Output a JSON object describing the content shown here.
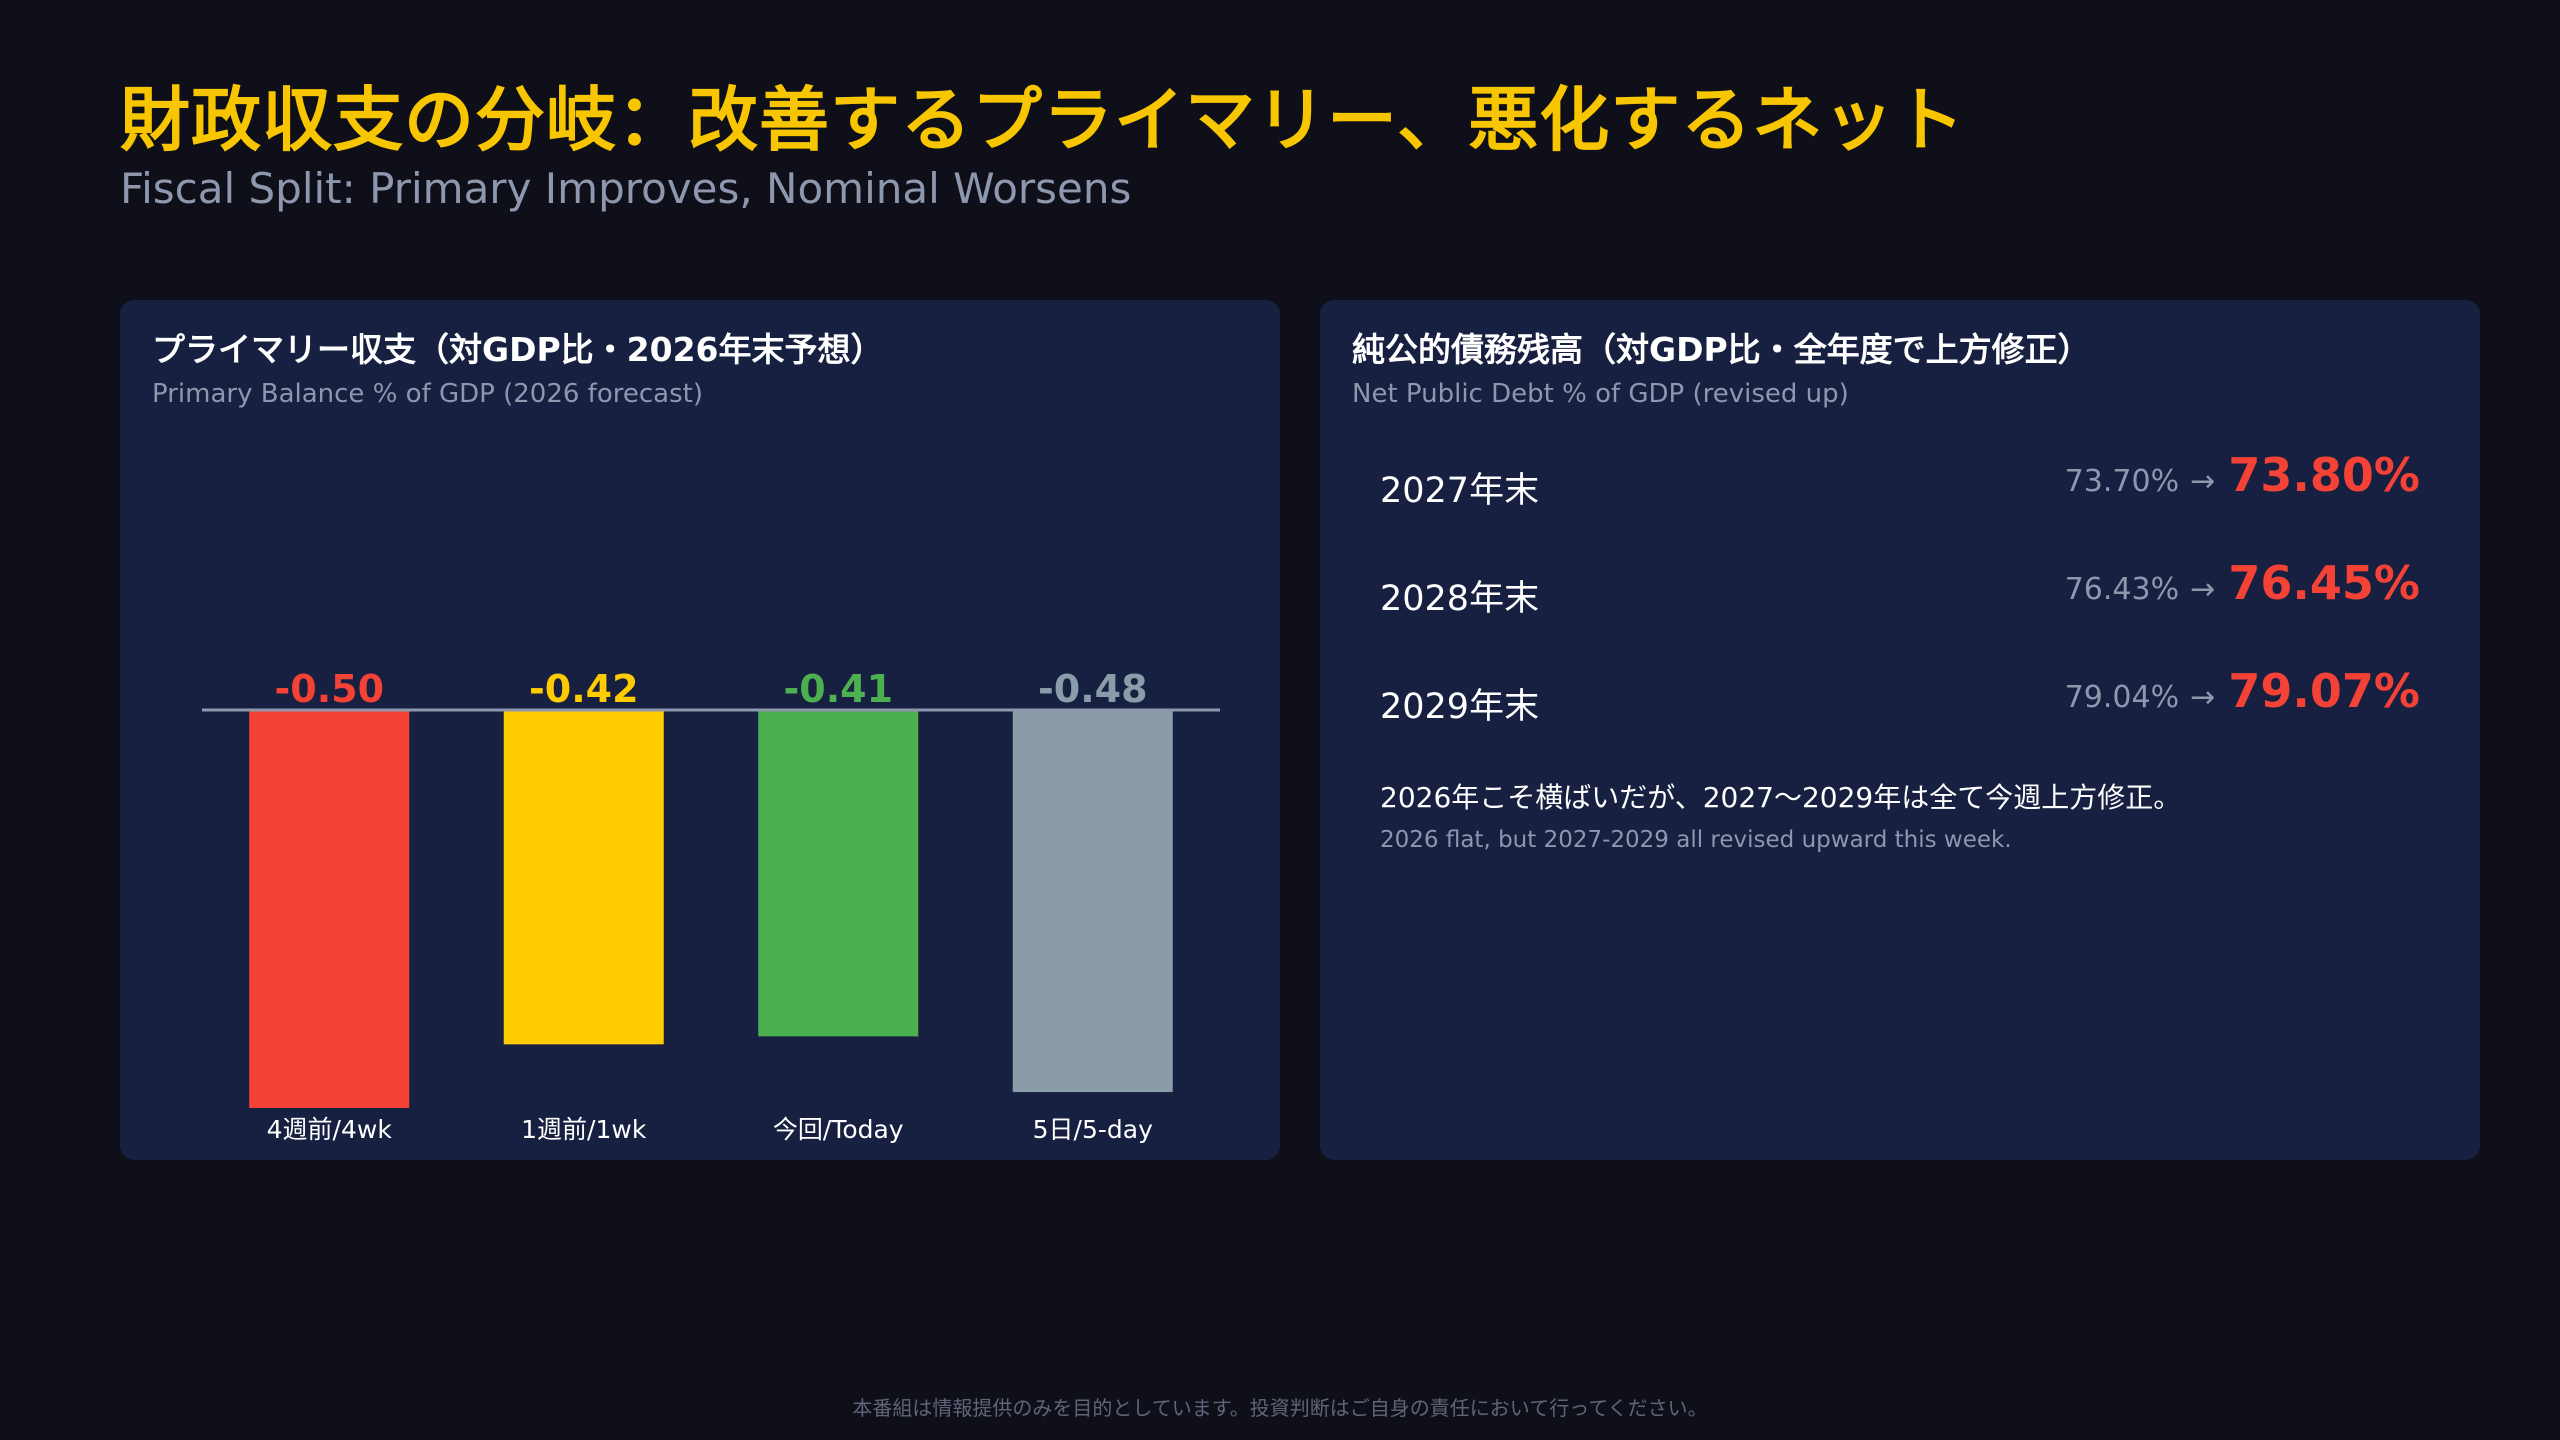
{
  "header": {
    "title": "財政収支の分岐：改善するプライマリー、悪化するネット",
    "subtitle": "Fiscal Split: Primary Improves, Nominal Worsens"
  },
  "left_panel": {
    "title": "プライマリー収支（対GDP比・2026年末予想）",
    "subtitle": "Primary Balance % of GDP (2026 forecast)"
  },
  "right_panel": {
    "title": "純公的債務残高（対GDP比・全年度で上方修正）",
    "subtitle": "Net Public Debt % of GDP (revised up)",
    "rows": [
      {
        "year": "2027年末",
        "old": "73.70%",
        "arrow": "→",
        "new": "73.80%"
      },
      {
        "year": "2028年末",
        "old": "76.43%",
        "arrow": "→",
        "new": "76.45%"
      },
      {
        "year": "2029年末",
        "old": "79.04%",
        "arrow": "→",
        "new": "79.07%"
      }
    ],
    "note_ja": "2026年こそ横ばいだが、2027〜2029年は全て今週上方修正。",
    "note_en": "2026 flat, but 2027-2029 all revised upward this week."
  },
  "chart_data": {
    "type": "bar",
    "categories": [
      "4週前/4wk",
      "1週前/1wk",
      "今回/Today",
      "5日/5-day"
    ],
    "values": [
      -0.5,
      -0.42,
      -0.41,
      -0.48
    ],
    "data_labels": [
      "-0.50",
      "-0.42",
      "-0.41",
      "-0.48"
    ],
    "colors": [
      "#f44336",
      "#ffcc00",
      "#4caf50",
      "#8a9baa"
    ],
    "title": "プライマリー収支（対GDP比・2026年末予想）",
    "ylim": [
      -0.5,
      0
    ],
    "grid": false,
    "legend": "none"
  },
  "footer": {
    "disclaimer": "本番組は情報提供のみを目的としています。投資判断はご自身の責任において行ってください。"
  }
}
